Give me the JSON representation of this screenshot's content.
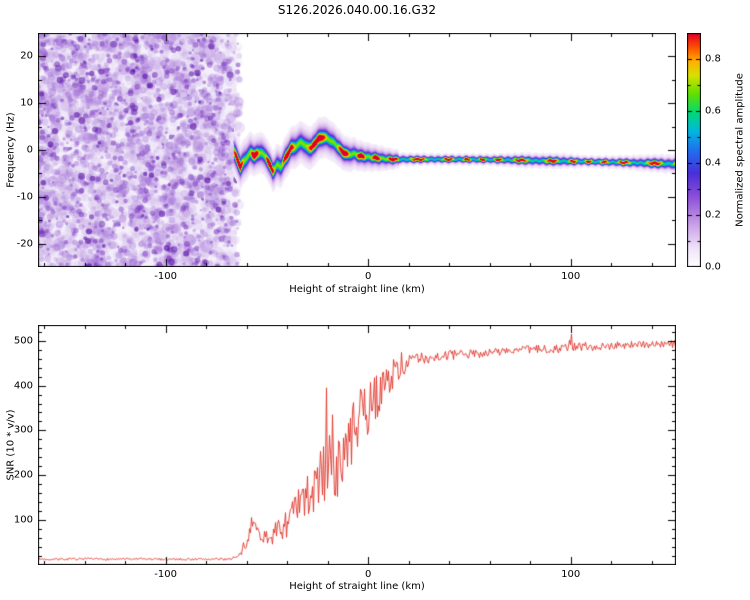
{
  "title": "S126.2026.040.00.16.G32",
  "chart_data": [
    {
      "type": "heatmap",
      "title": "S126.2026.040.00.16.G32",
      "xlabel": "Height of straight line (km)",
      "ylabel": "Frequency (Hz)",
      "xlim": [
        -163,
        152
      ],
      "ylim": [
        -25,
        25
      ],
      "x_ticks": [
        -100,
        0,
        100
      ],
      "x_minor_step": 20,
      "y_ticks": [
        20,
        10,
        0,
        -10,
        -20
      ],
      "y_minor_step": 5,
      "colorbar": {
        "label": "Normalized spectral amplitude",
        "tick_labels": [
          "0.0",
          "0.2",
          "0.4",
          "0.6",
          "0.8"
        ],
        "tick_values": [
          0,
          0.2,
          0.4,
          0.6,
          0.8
        ],
        "vmax": 0.9,
        "minor_step": 0.1
      },
      "colormap": [
        {
          "v": 0.0,
          "c": "#ffffff"
        },
        {
          "v": 0.08,
          "c": "#efe2f7"
        },
        {
          "v": 0.18,
          "c": "#c9a0e8"
        },
        {
          "v": 0.3,
          "c": "#8b4fd8"
        },
        {
          "v": 0.4,
          "c": "#4a2fd8"
        },
        {
          "v": 0.5,
          "c": "#2070f0"
        },
        {
          "v": 0.58,
          "c": "#00b8e0"
        },
        {
          "v": 0.66,
          "c": "#00d878"
        },
        {
          "v": 0.74,
          "c": "#60e000"
        },
        {
          "v": 0.82,
          "c": "#d8e000"
        },
        {
          "v": 0.88,
          "c": "#ffb000"
        },
        {
          "v": 0.94,
          "c": "#ff5000"
        },
        {
          "v": 1.0,
          "c": "#e00028"
        }
      ],
      "noise_region": {
        "x_min_km": -163,
        "x_max_km": -65,
        "description": "diffuse purple speckle noise, no coherent signal"
      },
      "trace": {
        "description": "narrow high-amplitude spectral ridge near 0 Hz with red core dashes",
        "x_start_km": -66,
        "center_hz": [
          [
            -66,
            -0.6
          ],
          [
            -63,
            -3.6
          ],
          [
            -61,
            -2.2
          ],
          [
            -58,
            -0.6
          ],
          [
            -56,
            -1.2
          ],
          [
            -53,
            -0.4
          ],
          [
            -50,
            -1.8
          ],
          [
            -47,
            -4.6
          ],
          [
            -45,
            -3.2
          ],
          [
            -43,
            -3.6
          ],
          [
            -41,
            -1.8
          ],
          [
            -38,
            0.4
          ],
          [
            -35,
            0.9
          ],
          [
            -33,
            1.8
          ],
          [
            -31,
            0.8
          ],
          [
            -28,
            0.4
          ],
          [
            -25,
            2.2
          ],
          [
            -22,
            2.8
          ],
          [
            -19,
            2.2
          ],
          [
            -16,
            1.2
          ],
          [
            -13,
            -0.3
          ],
          [
            -10,
            -1.0
          ],
          [
            -7,
            -0.8
          ],
          [
            -4,
            -1.3
          ],
          [
            0,
            -1.5
          ],
          [
            6,
            -1.8
          ],
          [
            12,
            -2.0
          ],
          [
            25,
            -2.0
          ],
          [
            45,
            -2.0
          ],
          [
            65,
            -2.1
          ],
          [
            85,
            -2.3
          ],
          [
            100,
            -2.4
          ],
          [
            120,
            -2.6
          ],
          [
            138,
            -2.8
          ],
          [
            152,
            -3.0
          ]
        ],
        "sigma_hz": [
          [
            -66,
            1.0
          ],
          [
            -55,
            0.85
          ],
          [
            -40,
            0.9
          ],
          [
            -25,
            0.9
          ],
          [
            -15,
            0.8
          ],
          [
            -5,
            0.65
          ],
          [
            5,
            0.55
          ],
          [
            15,
            0.4
          ],
          [
            30,
            0.35
          ],
          [
            60,
            0.35
          ],
          [
            78,
            0.45
          ],
          [
            95,
            0.45
          ],
          [
            108,
            0.35
          ],
          [
            125,
            0.4
          ],
          [
            140,
            0.5
          ],
          [
            152,
            0.55
          ]
        ]
      }
    },
    {
      "type": "line",
      "xlabel": "Height of straight line (km)",
      "ylabel": "SNR (10 * v/v)",
      "xlim": [
        -163,
        152
      ],
      "ylim": [
        0,
        535
      ],
      "x_ticks": [
        -100,
        0,
        100
      ],
      "x_minor_step": 20,
      "y_ticks": [
        100,
        200,
        300,
        400,
        500
      ],
      "y_minor_step": 20,
      "color": "#e0352b",
      "series": [
        {
          "name": "SNR",
          "base_points": [
            [
              -163,
              13
            ],
            [
              -70,
              13
            ],
            [
              -64,
              18
            ],
            [
              -60,
              45
            ],
            [
              -57,
              100
            ],
            [
              -54,
              70
            ],
            [
              -50,
              58
            ],
            [
              -46,
              70
            ],
            [
              -42,
              85
            ],
            [
              -38,
              105
            ],
            [
              -34,
              130
            ],
            [
              -30,
              150
            ],
            [
              -26,
              170
            ],
            [
              -22,
              205
            ],
            [
              -19,
              225
            ],
            [
              -15,
              210
            ],
            [
              -11,
              255
            ],
            [
              -7,
              300
            ],
            [
              -3,
              335
            ],
            [
              0,
              350
            ],
            [
              4,
              375
            ],
            [
              8,
              400
            ],
            [
              12,
              425
            ],
            [
              16,
              440
            ],
            [
              20,
              452
            ],
            [
              26,
              460
            ],
            [
              35,
              466
            ],
            [
              50,
              470
            ],
            [
              70,
              478
            ],
            [
              90,
              482
            ],
            [
              100,
              485
            ],
            [
              115,
              488
            ],
            [
              135,
              492
            ],
            [
              152,
              492
            ]
          ],
          "noise_amp_points": [
            [
              -163,
              4
            ],
            [
              -70,
              4
            ],
            [
              -64,
              8
            ],
            [
              -60,
              18
            ],
            [
              -57,
              20
            ],
            [
              -54,
              22
            ],
            [
              -50,
              28
            ],
            [
              -46,
              40
            ],
            [
              -42,
              50
            ],
            [
              -38,
              60
            ],
            [
              -34,
              75
            ],
            [
              -30,
              90
            ],
            [
              -26,
              100
            ],
            [
              -22,
              115
            ],
            [
              -19,
              120
            ],
            [
              -15,
              115
            ],
            [
              -11,
              120
            ],
            [
              -7,
              115
            ],
            [
              -3,
              105
            ],
            [
              0,
              100
            ],
            [
              4,
              85
            ],
            [
              8,
              70
            ],
            [
              12,
              55
            ],
            [
              16,
              42
            ],
            [
              20,
              30
            ],
            [
              26,
              24
            ],
            [
              35,
              20
            ],
            [
              50,
              17
            ],
            [
              70,
              15
            ],
            [
              90,
              16
            ],
            [
              100,
              20
            ],
            [
              115,
              15
            ],
            [
              135,
              14
            ],
            [
              152,
              14
            ]
          ],
          "spikes": [
            [
              -21,
              395
            ],
            [
              -18,
              335
            ],
            [
              100,
              515
            ]
          ]
        }
      ]
    }
  ]
}
